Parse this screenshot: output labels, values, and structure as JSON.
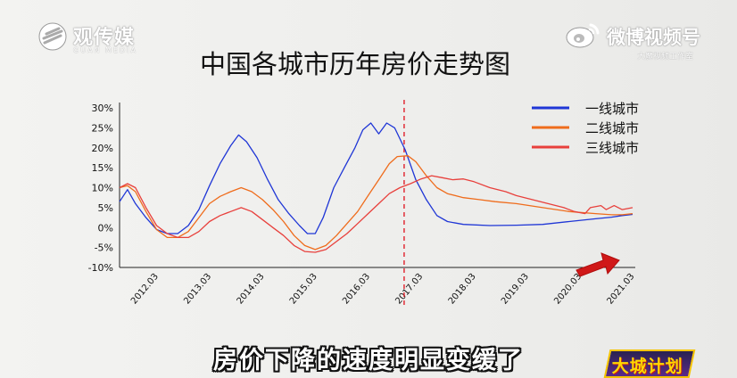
{
  "watermark_left": {
    "name": "观传媒",
    "sub": "GUAN MEDIA"
  },
  "watermark_right": {
    "name": "微博视频号",
    "sub": "大魔视频工作室"
  },
  "caption": "房价下降的速度明显变缓了",
  "badge": "大城计划",
  "chart_data": {
    "type": "line",
    "title": "中国各城市历年房价走势图",
    "xlabel": "",
    "ylabel": "",
    "x_range": [
      2011.5,
      2021.25
    ],
    "ylim": [
      -10,
      30
    ],
    "yticks": [
      30,
      25,
      20,
      15,
      10,
      5,
      0,
      -5,
      -10
    ],
    "ytick_labels": [
      "30%",
      "25%",
      "20%",
      "15%",
      "10%",
      "5%",
      "0%",
      "-5%",
      "-10%"
    ],
    "xticks": [
      2012.17,
      2013.17,
      2014.17,
      2015.17,
      2016.17,
      2017.17,
      2018.17,
      2019.17,
      2020.17,
      2021.17
    ],
    "xtick_labels": [
      "2012.03",
      "2013.03",
      "2014.03",
      "2015.03",
      "2016.03",
      "2017.03",
      "2018.03",
      "2019.03",
      "2020.03",
      "2021.03"
    ],
    "grid": false,
    "legend": "top-right",
    "marker_line_x": 2016.88,
    "series": [
      {
        "name": "一线城市",
        "color": "#1f36d6",
        "points": [
          [
            2011.5,
            6.5
          ],
          [
            2011.65,
            9.5
          ],
          [
            2011.8,
            6
          ],
          [
            2012.0,
            2.5
          ],
          [
            2012.2,
            -0.5
          ],
          [
            2012.4,
            -1.5
          ],
          [
            2012.6,
            -1.5
          ],
          [
            2012.8,
            0.5
          ],
          [
            2013.0,
            4.5
          ],
          [
            2013.2,
            10.5
          ],
          [
            2013.4,
            16
          ],
          [
            2013.6,
            20.5
          ],
          [
            2013.75,
            23.2
          ],
          [
            2013.9,
            21.5
          ],
          [
            2014.1,
            17.5
          ],
          [
            2014.3,
            12
          ],
          [
            2014.5,
            7
          ],
          [
            2014.7,
            3.5
          ],
          [
            2014.9,
            0.5
          ],
          [
            2015.05,
            -1.5
          ],
          [
            2015.2,
            -1.5
          ],
          [
            2015.35,
            2.5
          ],
          [
            2015.55,
            10
          ],
          [
            2015.75,
            15
          ],
          [
            2015.95,
            20
          ],
          [
            2016.1,
            24.5
          ],
          [
            2016.25,
            26.2
          ],
          [
            2016.4,
            23.5
          ],
          [
            2016.55,
            26.2
          ],
          [
            2016.7,
            25
          ],
          [
            2016.9,
            19.5
          ],
          [
            2017.1,
            12
          ],
          [
            2017.3,
            7
          ],
          [
            2017.5,
            3
          ],
          [
            2017.7,
            1.5
          ],
          [
            2018.0,
            0.8
          ],
          [
            2018.5,
            0.5
          ],
          [
            2019.0,
            0.6
          ],
          [
            2019.5,
            0.8
          ],
          [
            2020.0,
            1.5
          ],
          [
            2020.5,
            2.2
          ],
          [
            2020.8,
            2.6
          ],
          [
            2021.0,
            3
          ],
          [
            2021.2,
            3.3
          ]
        ]
      },
      {
        "name": "二线城市",
        "color": "#ef6c1c",
        "points": [
          [
            2011.5,
            10
          ],
          [
            2011.65,
            10.5
          ],
          [
            2011.8,
            9
          ],
          [
            2012.0,
            4
          ],
          [
            2012.2,
            -0.5
          ],
          [
            2012.4,
            -2.5
          ],
          [
            2012.6,
            -2.5
          ],
          [
            2012.8,
            -1
          ],
          [
            2013.0,
            2.5
          ],
          [
            2013.2,
            6
          ],
          [
            2013.4,
            7.8
          ],
          [
            2013.6,
            9
          ],
          [
            2013.8,
            10
          ],
          [
            2014.0,
            9
          ],
          [
            2014.2,
            7
          ],
          [
            2014.4,
            4.5
          ],
          [
            2014.6,
            1.5
          ],
          [
            2014.8,
            -2
          ],
          [
            2015.0,
            -4.5
          ],
          [
            2015.2,
            -5.5
          ],
          [
            2015.4,
            -4.5
          ],
          [
            2015.6,
            -2
          ],
          [
            2015.8,
            1
          ],
          [
            2016.0,
            4
          ],
          [
            2016.2,
            8
          ],
          [
            2016.4,
            12
          ],
          [
            2016.6,
            16
          ],
          [
            2016.75,
            17.8
          ],
          [
            2016.95,
            18
          ],
          [
            2017.1,
            16.5
          ],
          [
            2017.3,
            13
          ],
          [
            2017.5,
            10
          ],
          [
            2017.7,
            8.5
          ],
          [
            2018.0,
            7.5
          ],
          [
            2018.3,
            7
          ],
          [
            2018.6,
            6.5
          ],
          [
            2019.0,
            6
          ],
          [
            2019.5,
            5
          ],
          [
            2020.0,
            4
          ],
          [
            2020.5,
            3.5
          ],
          [
            2020.8,
            3.2
          ],
          [
            2021.0,
            3.2
          ],
          [
            2021.2,
            3.5
          ]
        ]
      },
      {
        "name": "三线城市",
        "color": "#e8403c",
        "points": [
          [
            2011.5,
            10
          ],
          [
            2011.65,
            11
          ],
          [
            2011.8,
            10
          ],
          [
            2012.0,
            5
          ],
          [
            2012.2,
            0.5
          ],
          [
            2012.4,
            -1.5
          ],
          [
            2012.6,
            -2.5
          ],
          [
            2012.8,
            -2.5
          ],
          [
            2013.0,
            -1
          ],
          [
            2013.2,
            1.5
          ],
          [
            2013.4,
            3
          ],
          [
            2013.6,
            4
          ],
          [
            2013.8,
            5
          ],
          [
            2014.0,
            4
          ],
          [
            2014.2,
            2
          ],
          [
            2014.4,
            0
          ],
          [
            2014.6,
            -2
          ],
          [
            2014.8,
            -4.5
          ],
          [
            2015.0,
            -6
          ],
          [
            2015.2,
            -6.2
          ],
          [
            2015.4,
            -5.5
          ],
          [
            2015.6,
            -3.5
          ],
          [
            2015.8,
            -1.5
          ],
          [
            2016.0,
            1
          ],
          [
            2016.2,
            3.5
          ],
          [
            2016.4,
            6
          ],
          [
            2016.6,
            8.5
          ],
          [
            2016.8,
            10
          ],
          [
            2017.0,
            11
          ],
          [
            2017.2,
            12.2
          ],
          [
            2017.4,
            13
          ],
          [
            2017.6,
            12.5
          ],
          [
            2017.8,
            12
          ],
          [
            2018.0,
            12.2
          ],
          [
            2018.2,
            11.5
          ],
          [
            2018.5,
            10
          ],
          [
            2018.8,
            9
          ],
          [
            2019.0,
            8
          ],
          [
            2019.3,
            7
          ],
          [
            2019.6,
            6
          ],
          [
            2019.9,
            5
          ],
          [
            2020.1,
            4
          ],
          [
            2020.3,
            3.5
          ],
          [
            2020.4,
            5
          ],
          [
            2020.6,
            5.5
          ],
          [
            2020.7,
            4.5
          ],
          [
            2020.85,
            5.5
          ],
          [
            2021.0,
            4.5
          ],
          [
            2021.2,
            5
          ]
        ]
      }
    ]
  }
}
